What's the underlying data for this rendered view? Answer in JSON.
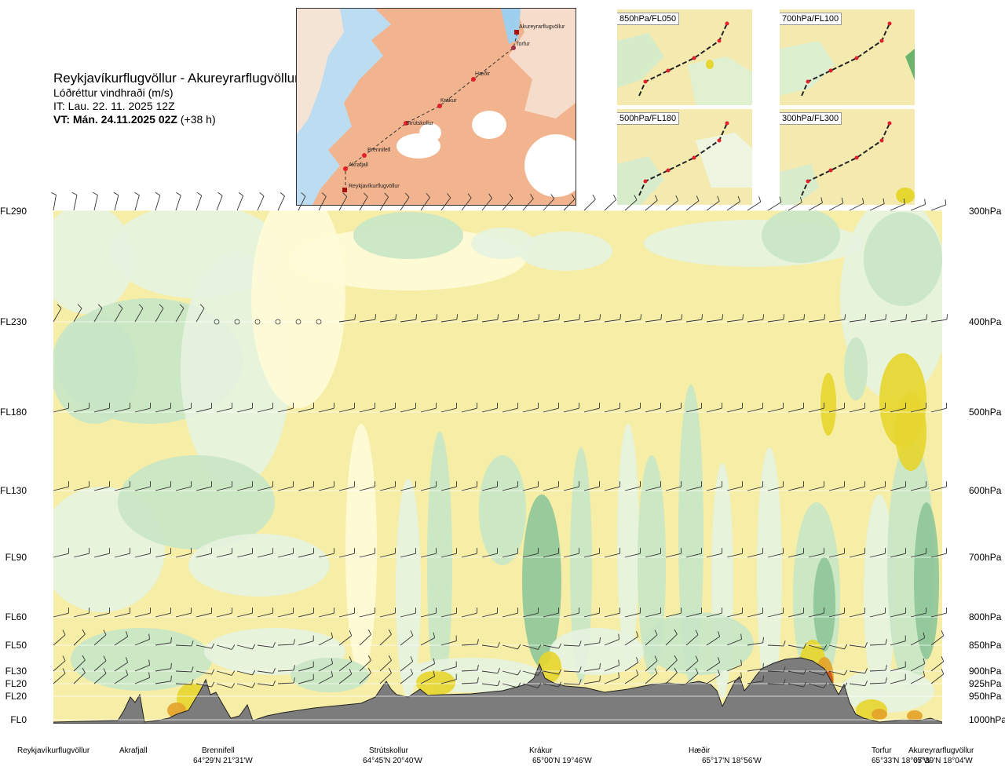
{
  "header": {
    "route": "Reykjavíkurflugvöllur - Akureyrarflugvöllur",
    "subtitle": "Lóðréttur vindhraði (m/s)",
    "it": "IT: Lau. 22. 11. 2025 12Z",
    "vt_bold": "VT: Mán. 24.11.2025 02Z",
    "vt_offset": " (+38 h)"
  },
  "map": {
    "points": [
      "Reykjavíkurflugvöllur",
      "Akrafjall",
      "Brennifell",
      "Strútskollur",
      "Krákur",
      "Hæðir",
      "Torfur",
      "Akureyrarflugvöllur"
    ]
  },
  "mini_maps": [
    "850hPa/FL050",
    "700hPa/FL100",
    "500hPa/FL180",
    "300hPa/FL300"
  ],
  "chart_data": {
    "type": "heatmap",
    "title": "Lóðréttur vindhraði (m/s)",
    "xlabel": "",
    "ylabel": "",
    "levels_left": [
      "FL290",
      "FL230",
      "FL180",
      "FL130",
      "FL90",
      "FL60",
      "FL50",
      "FL30",
      "FL20",
      "FL20",
      "FL0"
    ],
    "levels_right": [
      "300hPa",
      "400hPa",
      "500hPa",
      "600hPa",
      "700hPa",
      "800hPa",
      "850hPa",
      "900hPa",
      "925hPa",
      "950hPa",
      "1000hPa"
    ],
    "pressure_hpa": [
      300,
      400,
      500,
      600,
      700,
      800,
      850,
      900,
      925,
      950,
      1000
    ],
    "locations": [
      {
        "name": "Reykjavíkurflugvöllur",
        "coord": ""
      },
      {
        "name": "Akrafjall",
        "coord": ""
      },
      {
        "name": "Brennifell",
        "coord": "64°29'N 21°31'W"
      },
      {
        "name": "Strútskollur",
        "coord": "64°45'N 20°40'W"
      },
      {
        "name": "Krákur",
        "coord": "65°00'N 19°46'W"
      },
      {
        "name": "Hæðir",
        "coord": "65°17'N 18°56'W"
      },
      {
        "name": "Torfur",
        "coord": "65°33'N 18°07'W"
      },
      {
        "name": "Akureyrarflugvöllur",
        "coord": "65°39'N 18°04'W"
      }
    ],
    "colors": {
      "strong_down": "#8fc79a",
      "down": "#c8e6c6",
      "weak_down": "#e6f3e0",
      "neutral": "#fefbd8",
      "weak_up": "#f6eda6",
      "up": "#e6d630",
      "strong_up": "#e3a32a",
      "max_up": "#c6551e",
      "terrain": "#7c7c7c"
    }
  }
}
